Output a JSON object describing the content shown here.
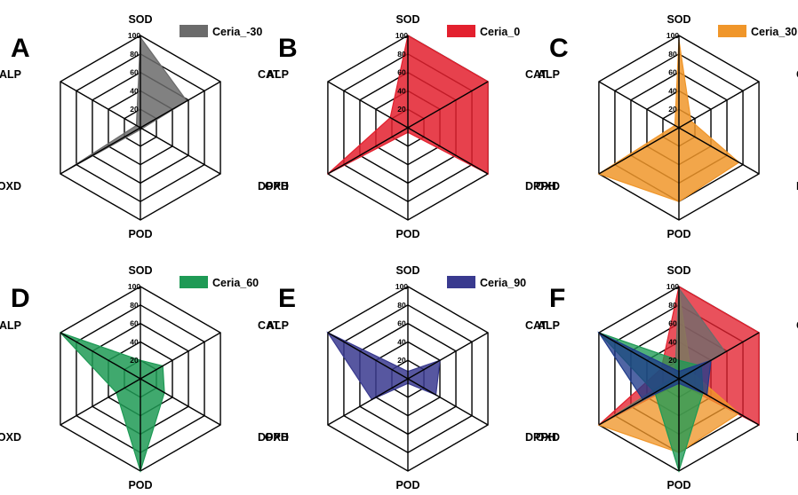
{
  "chart_data": [
    {
      "type": "radar",
      "panel": "A",
      "axes": [
        "SOD",
        "CAT",
        "DPPH",
        "POD",
        "OXD",
        "ALP"
      ],
      "ticks": [
        "20",
        "40",
        "60",
        "80",
        "100"
      ],
      "rlim": [
        0,
        100
      ],
      "legend_position": "top-right",
      "series": [
        {
          "name": "Ceria_-30",
          "color": "#6b6b6b",
          "values": [
            98,
            58,
            2,
            2,
            92,
            5
          ]
        }
      ]
    },
    {
      "type": "radar",
      "panel": "B",
      "axes": [
        "SOD",
        "CAT",
        "DPPH",
        "POD",
        "OXD",
        "ALP"
      ],
      "ticks": [
        "20",
        "40",
        "60",
        "80",
        "100"
      ],
      "rlim": [
        0,
        100
      ],
      "legend_position": "top-right",
      "series": [
        {
          "name": "Ceria_0",
          "color": "#e3202e",
          "values": [
            100,
            100,
            100,
            5,
            100,
            22
          ]
        }
      ]
    },
    {
      "type": "radar",
      "panel": "C",
      "axes": [
        "SOD",
        "CAT",
        "DPPH",
        "POD",
        "OXD",
        "ALP"
      ],
      "ticks": [
        "20",
        "40",
        "60",
        "80",
        "100"
      ],
      "rlim": [
        0,
        100
      ],
      "legend_position": "top-right",
      "series": [
        {
          "name": "Ceria_30",
          "color": "#f0962a",
          "values": [
            95,
            15,
            75,
            80,
            100,
            5
          ]
        }
      ]
    },
    {
      "type": "radar",
      "panel": "D",
      "axes": [
        "SOD",
        "CAT",
        "DPPH",
        "POD",
        "OXD",
        "ALP"
      ],
      "ticks": [
        "20",
        "40",
        "60",
        "80",
        "100"
      ],
      "rlim": [
        0,
        100
      ],
      "legend_position": "top-right",
      "series": [
        {
          "name": "Ceria_60",
          "color": "#1e9a55",
          "values": [
            20,
            28,
            30,
            100,
            30,
            100
          ]
        }
      ]
    },
    {
      "type": "radar",
      "panel": "E",
      "axes": [
        "SOD",
        "CAT",
        "DPPH",
        "POD",
        "OXD",
        "ALP"
      ],
      "ticks": [
        "20",
        "40",
        "60",
        "80",
        "100"
      ],
      "rlim": [
        0,
        100
      ],
      "legend_position": "top-right",
      "series": [
        {
          "name": "Ceria_90",
          "color": "#393a8f",
          "values": [
            8,
            40,
            35,
            5,
            45,
            100
          ]
        }
      ]
    },
    {
      "type": "radar",
      "panel": "F",
      "axes": [
        "SOD",
        "CAT",
        "DPPH",
        "POD",
        "OXD",
        "ALP"
      ],
      "ticks": [
        "20",
        "40",
        "60",
        "80",
        "100"
      ],
      "rlim": [
        0,
        100
      ],
      "series": [
        {
          "name": "Ceria_0",
          "color": "#e3202e",
          "values": [
            100,
            100,
            100,
            5,
            100,
            22
          ]
        },
        {
          "name": "Ceria_30",
          "color": "#f0962a",
          "values": [
            95,
            15,
            75,
            80,
            100,
            5
          ]
        },
        {
          "name": "Ceria_-30",
          "color": "#6b6b6b",
          "values": [
            98,
            58,
            2,
            2,
            92,
            5
          ]
        },
        {
          "name": "Ceria_60",
          "color": "#1e9a55",
          "values": [
            20,
            28,
            30,
            100,
            30,
            100
          ]
        },
        {
          "name": "Ceria_90",
          "color": "#1f3a8a",
          "values": [
            8,
            40,
            35,
            5,
            45,
            100
          ]
        }
      ]
    }
  ]
}
